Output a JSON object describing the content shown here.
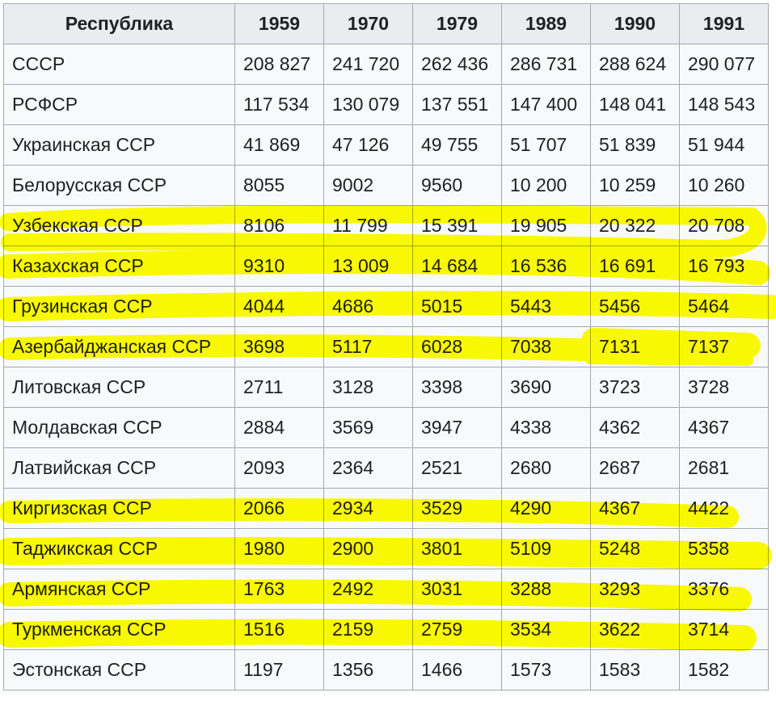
{
  "table": {
    "headers": [
      "Республика",
      "1959",
      "1970",
      "1979",
      "1989",
      "1990",
      "1991"
    ],
    "rows": [
      {
        "name": "СССР",
        "values": [
          "208 827",
          "241 720",
          "262 436",
          "286 731",
          "288 624",
          "290 077"
        ],
        "highlighted": false
      },
      {
        "name": "РСФСР",
        "values": [
          "117 534",
          "130 079",
          "137 551",
          "147 400",
          "148 041",
          "148 543"
        ],
        "highlighted": false
      },
      {
        "name": "Украинская ССР",
        "values": [
          "41 869",
          "47 126",
          "49 755",
          "51 707",
          "51 839",
          "51 944"
        ],
        "highlighted": false
      },
      {
        "name": "Белорусская ССР",
        "values": [
          "8055",
          "9002",
          "9560",
          "10 200",
          "10 259",
          "10 260"
        ],
        "highlighted": false
      },
      {
        "name": "Узбекская ССР",
        "values": [
          "8106",
          "11 799",
          "15 391",
          "19 905",
          "20 322",
          "20 708"
        ],
        "highlighted": true
      },
      {
        "name": "Казахская ССР",
        "values": [
          "9310",
          "13 009",
          "14 684",
          "16 536",
          "16 691",
          "16 793"
        ],
        "highlighted": true
      },
      {
        "name": "Грузинская ССР",
        "values": [
          "4044",
          "4686",
          "5015",
          "5443",
          "5456",
          "5464"
        ],
        "highlighted": true
      },
      {
        "name": "Азербайджанская ССР",
        "values": [
          "3698",
          "5117",
          "6028",
          "7038",
          "7131",
          "7137"
        ],
        "highlighted": true
      },
      {
        "name": "Литовская ССР",
        "values": [
          "2711",
          "3128",
          "3398",
          "3690",
          "3723",
          "3728"
        ],
        "highlighted": false
      },
      {
        "name": "Молдавская ССР",
        "values": [
          "2884",
          "3569",
          "3947",
          "4338",
          "4362",
          "4367"
        ],
        "highlighted": false
      },
      {
        "name": "Латвийская ССР",
        "values": [
          "2093",
          "2364",
          "2521",
          "2680",
          "2687",
          "2681"
        ],
        "highlighted": false
      },
      {
        "name": "Киргизская ССР",
        "values": [
          "2066",
          "2934",
          "3529",
          "4290",
          "4367",
          "4422"
        ],
        "highlighted": true
      },
      {
        "name": "Таджикская ССР",
        "values": [
          "1980",
          "2900",
          "3801",
          "5109",
          "5248",
          "5358"
        ],
        "highlighted": true
      },
      {
        "name": "Армянская ССР",
        "values": [
          "1763",
          "2492",
          "3031",
          "3288",
          "3293",
          "3376"
        ],
        "highlighted": true
      },
      {
        "name": "Туркменская ССР",
        "values": [
          "1516",
          "2159",
          "2759",
          "3534",
          "3622",
          "3714"
        ],
        "highlighted": true
      },
      {
        "name": "Эстонская ССР",
        "values": [
          "1197",
          "1356",
          "1466",
          "1573",
          "1583",
          "1582"
        ],
        "highlighted": false
      }
    ]
  },
  "colors": {
    "highlight": "#ffff00",
    "header_bg": "#eaecf0",
    "cell_bg": "#f8f9fa",
    "border": "#a2a9b1",
    "text": "#202122"
  }
}
